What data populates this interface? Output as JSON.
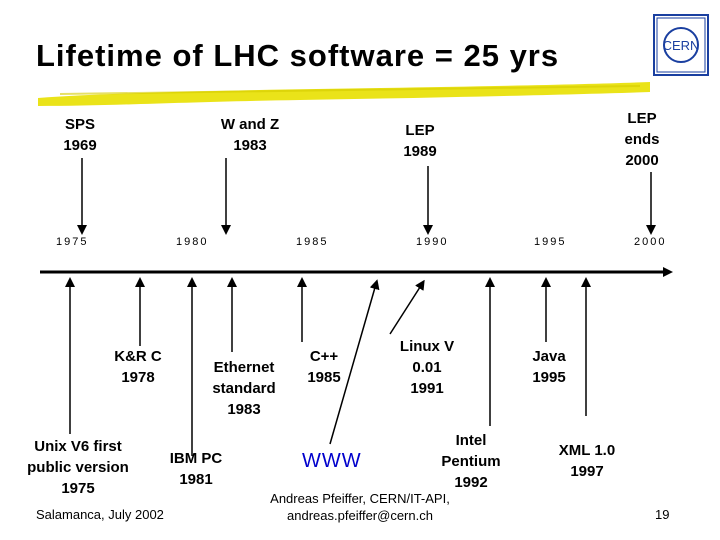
{
  "title": "Lifetime of LHC software = 25 yrs",
  "logo": {
    "text": "CERN",
    "color": "#1a3fa0"
  },
  "colors": {
    "highlight": "#e8e000",
    "link": "#0000cc"
  },
  "top_events": [
    {
      "text": "SPS\n1969"
    },
    {
      "text": "W and Z\n1983"
    },
    {
      "text": "LEP\n1989"
    },
    {
      "text": "LEP\nends\n2000"
    }
  ],
  "ticks": [
    "1975",
    "1980",
    "1985",
    "1990",
    "1995",
    "2000"
  ],
  "bottom_events": [
    {
      "text": "Unix V6 first\npublic version\n1975"
    },
    {
      "text": "K&R C\n1978"
    },
    {
      "text": "IBM PC\n1981"
    },
    {
      "text": "Ethernet\nstandard\n1983"
    },
    {
      "text": "C++\n1985"
    },
    {
      "text": "Linux V\n0.01\n1991"
    },
    {
      "text": "Intel\nPentium\n1992"
    },
    {
      "text": "Java\n1995"
    },
    {
      "text": "XML 1.0\n1997"
    }
  ],
  "www_label": "WWW",
  "footer": {
    "left": "Salamanca, July 2002",
    "center": "Andreas Pfeiffer, CERN/IT-API,\nandreas.pfeiffer@cern.ch",
    "page": "19"
  }
}
